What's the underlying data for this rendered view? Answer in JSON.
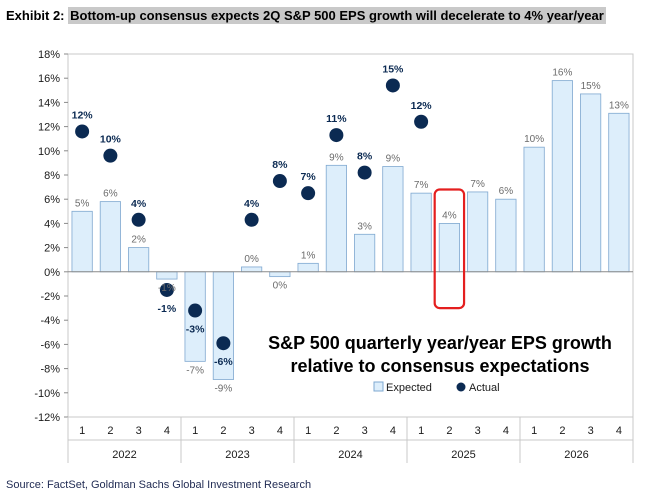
{
  "header": {
    "prefix": "Exhibit 2:",
    "title": "Bottom-up consensus expects 2Q S&P 500 EPS growth will decelerate to 4% year/year"
  },
  "footer": {
    "source": "Source: FactSet, Goldman Sachs Global Investment Research"
  },
  "colors": {
    "bar_fill": "#ddeefb",
    "bar_stroke": "#7fa8d0",
    "actual_dot": "#0b2a52",
    "highlight_box": "#e41f1f",
    "axis": "#8a8a8a",
    "text": "#1a1a1a"
  },
  "chart_data": {
    "type": "bar",
    "title": "S&P 500 quarterly year/year EPS growth",
    "subtitle": "relative to consensus expectations",
    "ylim": [
      -12,
      18
    ],
    "ytick_step": 2,
    "ytick_labels": [
      "18%",
      "16%",
      "14%",
      "12%",
      "10%",
      "8%",
      "6%",
      "4%",
      "2%",
      "0%",
      "-2%",
      "-4%",
      "-6%",
      "-8%",
      "-10%",
      "-12%"
    ],
    "years": [
      "2022",
      "2023",
      "2024",
      "2025",
      "2026"
    ],
    "quarter_labels": [
      "1",
      "2",
      "3",
      "4",
      "1",
      "2",
      "3",
      "4",
      "1",
      "2",
      "3",
      "4",
      "1",
      "2",
      "3",
      "4",
      "1",
      "2",
      "3",
      "4"
    ],
    "legend": [
      "Expected",
      "Actual"
    ],
    "legend_position": "bottom-right",
    "highlight_index": 13,
    "series": [
      {
        "name": "Expected",
        "values": [
          5,
          5.8,
          2,
          -0.6,
          -7.4,
          -8.9,
          0.4,
          -0.4,
          0.7,
          8.8,
          3.1,
          8.7,
          6.5,
          4,
          6.6,
          6,
          10.3,
          15.8,
          14.7,
          13.1
        ],
        "labels": [
          "5%",
          "6%",
          "2%",
          "-1%",
          "-7%",
          "-9%",
          "0%",
          "0%",
          "1%",
          "9%",
          "3%",
          "9%",
          "7%",
          "4%",
          "7%",
          "6%",
          "10%",
          "16%",
          "15%",
          "13%"
        ]
      },
      {
        "name": "Actual",
        "values": [
          11.6,
          9.6,
          4.3,
          -1.5,
          -3.2,
          -5.9,
          4.3,
          7.5,
          6.5,
          11.3,
          8.2,
          15.4,
          12.4,
          null,
          null,
          null,
          null,
          null,
          null,
          null
        ],
        "labels": [
          "12%",
          "10%",
          "4%",
          "-1%",
          "-3%",
          "-6%",
          "4%",
          "8%",
          "7%",
          "11%",
          "8%",
          "15%",
          "12%",
          null,
          null,
          null,
          null,
          null,
          null,
          null
        ]
      }
    ]
  }
}
